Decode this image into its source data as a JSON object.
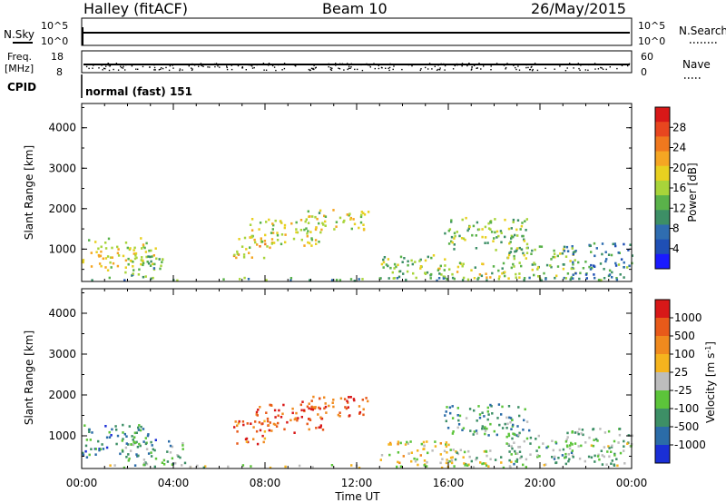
{
  "header": {
    "station": "Halley (fitACF)",
    "beam": "Beam 10",
    "date": "26/May/2015"
  },
  "strip_labels": {
    "nsky": "N.Sky",
    "nsearch": "N.Search",
    "freq_line1": "Freq.",
    "freq_line2": "[MHz]",
    "nave": "Nave",
    "cpid": "CPID",
    "cpid_value": "normal (fast) 151"
  },
  "strip_ticks": {
    "noise_top": "10^5",
    "noise_bottom": "10^0",
    "freq_top": "18",
    "freq_bottom": "8",
    "nave_top": "60",
    "nave_bottom": "0"
  },
  "chart_data": [
    {
      "type": "heatmap",
      "panel": "power",
      "ylabel": "Slant Range [km]",
      "ylim": [
        200,
        4600
      ],
      "yticks": [
        "1000",
        "2000",
        "3000",
        "4000"
      ],
      "xlim": [
        0,
        24
      ],
      "colorbar": {
        "label": "Power [dB]",
        "ticks": [
          "4",
          "8",
          "12",
          "16",
          "20",
          "24",
          "28"
        ],
        "colors": [
          "#1a1aff",
          "#1f4fb5",
          "#2f6db0",
          "#3d8f66",
          "#5ab24a",
          "#a8d43a",
          "#e8d020",
          "#f5a623",
          "#f0781e",
          "#e8461f",
          "#d81818"
        ]
      },
      "clusters": [
        {
          "t0": 0.0,
          "t1": 3.2,
          "r0": 500,
          "r1": 1300,
          "level": 0.55
        },
        {
          "t0": 1.8,
          "t1": 3.5,
          "r0": 300,
          "r1": 900,
          "level": 0.4
        },
        {
          "t0": 6.6,
          "t1": 8.3,
          "r0": 800,
          "r1": 1400,
          "level": 0.6
        },
        {
          "t0": 7.3,
          "t1": 10.5,
          "r0": 1100,
          "r1": 1800,
          "level": 0.55
        },
        {
          "t0": 9.5,
          "t1": 12.5,
          "r0": 1500,
          "r1": 2000,
          "level": 0.5
        },
        {
          "t0": 13.0,
          "t1": 16.0,
          "r0": 300,
          "r1": 900,
          "level": 0.45
        },
        {
          "t0": 15.8,
          "t1": 19.5,
          "r0": 1000,
          "r1": 1800,
          "level": 0.45
        },
        {
          "t0": 15.5,
          "t1": 19.0,
          "r0": 300,
          "r1": 700,
          "level": 0.5
        },
        {
          "t0": 18.5,
          "t1": 21.5,
          "r0": 300,
          "r1": 1100,
          "level": 0.45
        },
        {
          "t0": 21.0,
          "t1": 24.0,
          "r0": 300,
          "r1": 1200,
          "level": 0.3
        },
        {
          "t0": 0.0,
          "t1": 24.0,
          "r0": 200,
          "r1": 320,
          "level": 0.35
        }
      ]
    },
    {
      "type": "heatmap",
      "panel": "velocity",
      "ylabel": "Slant Range [km]",
      "ylim": [
        200,
        4600
      ],
      "yticks": [
        "1000",
        "2000",
        "3000",
        "4000"
      ],
      "xlim": [
        0,
        24
      ],
      "xticks": [
        "00:00",
        "04:00",
        "08:00",
        "12:00",
        "16:00",
        "20:00",
        "00:00"
      ],
      "xlabel": "Time UT",
      "colorbar": {
        "label": "Velocity [m s^-1]",
        "ticks": [
          "1000",
          "500",
          "100",
          "25",
          "-25",
          "-100",
          "-500",
          "-1000"
        ],
        "colors": [
          "#1a2fd6",
          "#2b6ca8",
          "#3d8f66",
          "#5cc43a",
          "#bdbdbd",
          "#f5b41e",
          "#f08a1e",
          "#e85a1a",
          "#d81818"
        ]
      },
      "clusters": [
        {
          "t0": 0.0,
          "t1": 3.2,
          "r0": 500,
          "r1": 1300,
          "level": 0.25
        },
        {
          "t0": 1.8,
          "t1": 4.5,
          "r0": 300,
          "r1": 900,
          "level": 0.35
        },
        {
          "t0": 6.6,
          "t1": 8.3,
          "r0": 800,
          "r1": 1400,
          "level": 0.8
        },
        {
          "t0": 7.3,
          "t1": 10.5,
          "r0": 1100,
          "r1": 1800,
          "level": 0.85
        },
        {
          "t0": 9.5,
          "t1": 12.5,
          "r0": 1500,
          "r1": 2000,
          "level": 0.85
        },
        {
          "t0": 13.0,
          "t1": 16.0,
          "r0": 300,
          "r1": 900,
          "level": 0.55
        },
        {
          "t0": 15.8,
          "t1": 19.5,
          "r0": 1000,
          "r1": 1800,
          "level": 0.3
        },
        {
          "t0": 15.5,
          "t1": 19.0,
          "r0": 300,
          "r1": 700,
          "level": 0.45
        },
        {
          "t0": 18.5,
          "t1": 21.5,
          "r0": 300,
          "r1": 1100,
          "level": 0.35
        },
        {
          "t0": 21.0,
          "t1": 24.0,
          "r0": 300,
          "r1": 1200,
          "level": 0.4
        },
        {
          "t0": 0.0,
          "t1": 24.0,
          "r0": 200,
          "r1": 320,
          "level": 0.5
        }
      ]
    }
  ]
}
